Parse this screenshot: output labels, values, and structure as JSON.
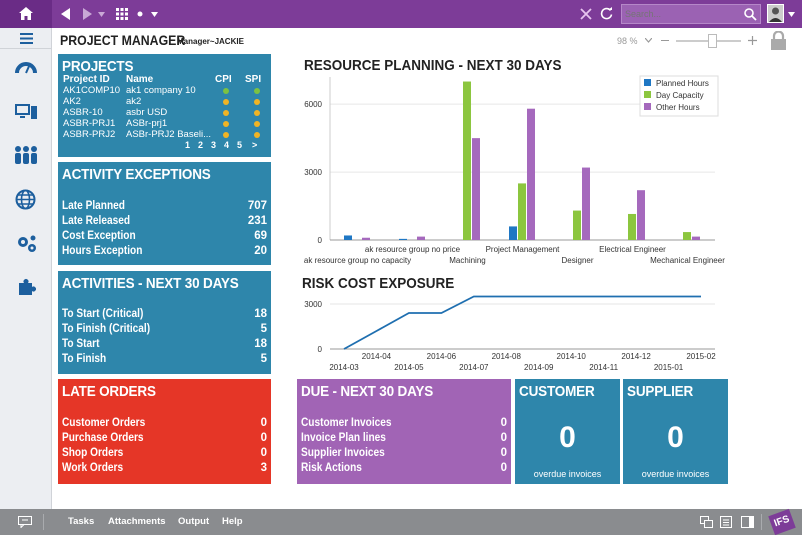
{
  "topbar": {
    "search_placeholder": "Search...",
    "icons": [
      "home-icon",
      "back-icon",
      "forward-icon",
      "dropdown-icon",
      "apps-icon",
      "dot-icon",
      "close-icon",
      "refresh-icon",
      "search-icon",
      "user-avatar"
    ]
  },
  "header": {
    "title": "PROJECT MANAGER",
    "subtitle": "Manager~JACKIE",
    "zoom": "98 %",
    "zoom_fraction": 0.55
  },
  "projects": {
    "title": "PROJECTS",
    "columns": [
      "Project ID",
      "Name",
      "CPI",
      "SPI"
    ],
    "rows": [
      {
        "id": "AK1COMP10",
        "name": "ak1 company 10",
        "cpi": "#7cc242",
        "spi": "#7cc242"
      },
      {
        "id": "AK2",
        "name": "ak2",
        "cpi": "#f0b424",
        "spi": "#f0b424"
      },
      {
        "id": "ASBR-10",
        "name": "asbr USD",
        "cpi": "#f0b424",
        "spi": "#f0b424"
      },
      {
        "id": "ASBR-PRJ1",
        "name": "ASBr-prj1",
        "cpi": "#f0b424",
        "spi": "#f0b424"
      },
      {
        "id": "ASBR-PRJ2",
        "name": "ASBr-PRJ2 Baseli...",
        "cpi": "#f0b424",
        "spi": "#f0b424"
      }
    ],
    "pages": [
      "1",
      "2",
      "3",
      "4",
      "5",
      ">"
    ]
  },
  "activity_exceptions": {
    "title": "ACTIVITY EXCEPTIONS",
    "rows": [
      {
        "label": "Late Planned",
        "value": "707"
      },
      {
        "label": "Late Released",
        "value": "231"
      },
      {
        "label": "Cost Exception",
        "value": "69"
      },
      {
        "label": "Hours Exception",
        "value": "20"
      }
    ]
  },
  "activities": {
    "title": "ACTIVITIES - NEXT 30 DAYS",
    "rows": [
      {
        "label": "To Start (Critical)",
        "value": "18"
      },
      {
        "label": "To Finish (Critical)",
        "value": "5"
      },
      {
        "label": "To Start",
        "value": "18"
      },
      {
        "label": "To Finish",
        "value": "5"
      }
    ]
  },
  "late_orders": {
    "title": "LATE ORDERS",
    "rows": [
      {
        "label": "Customer Orders",
        "value": "0"
      },
      {
        "label": "Purchase Orders",
        "value": "0"
      },
      {
        "label": "Shop Orders",
        "value": "0"
      },
      {
        "label": "Work Orders",
        "value": "3"
      }
    ]
  },
  "due": {
    "title": "DUE - NEXT 30 DAYS",
    "rows": [
      {
        "label": "Customer Invoices",
        "value": "0"
      },
      {
        "label": "Invoice Plan lines",
        "value": "0"
      },
      {
        "label": "Supplier Invoices",
        "value": "0"
      },
      {
        "label": "Risk Actions",
        "value": "0"
      }
    ]
  },
  "customer": {
    "title": "CUSTOMER",
    "value": "0",
    "caption": "overdue invoices"
  },
  "supplier": {
    "title": "SUPPLIER",
    "value": "0",
    "caption": "overdue invoices"
  },
  "chart_data": [
    {
      "type": "bar",
      "title": "RESOURCE PLANNING - NEXT 30 DAYS",
      "categories": [
        "ak resource group no capacity",
        "ak resource group no price",
        "Machining",
        "Project Management",
        "Designer",
        "Electrical Engineer",
        "Mechanical Engineer"
      ],
      "series": [
        {
          "name": "Planned Hours",
          "color": "#1f77c4",
          "values": [
            200,
            50,
            0,
            600,
            0,
            0,
            0
          ]
        },
        {
          "name": "Day Capacity",
          "color": "#8cc63f",
          "values": [
            0,
            0,
            7000,
            2500,
            1300,
            1150,
            350
          ]
        },
        {
          "name": "Other Hours",
          "color": "#a569bd",
          "values": [
            100,
            150,
            4500,
            5800,
            3200,
            2200,
            150
          ]
        }
      ],
      "ylim": [
        0,
        7200
      ],
      "yticks": [
        "0",
        "3000",
        "6000"
      ],
      "xlabels_upper": [
        "ak resource group no price",
        "Project Management",
        "Electrical Engineer"
      ],
      "xlabels_lower": [
        "ak resource group no capacity",
        "Machining",
        "Designer",
        "Mechanical Engineer"
      ],
      "legend_position": "top-right",
      "grid": true
    },
    {
      "type": "line",
      "title": "RISK COST EXPOSURE",
      "x": [
        "2014-03",
        "2014-04",
        "2014-05",
        "2014-06",
        "2014-07",
        "2014-08",
        "2014-09",
        "2014-10",
        "2014-11",
        "2014-12",
        "2015-01",
        "2015-02"
      ],
      "values": [
        0,
        1200,
        2400,
        2400,
        3500,
        3500,
        3500,
        3500,
        3500,
        3500,
        3500,
        3500
      ],
      "color": "#1f6fb0",
      "ylim": [
        0,
        3600
      ],
      "yticks": [
        "0",
        "3000"
      ],
      "xlabels_upper": [
        "2014-04",
        "2014-06",
        "2014-08",
        "2014-10",
        "2014-12",
        "2015-02"
      ],
      "xlabels_lower": [
        "2014-03",
        "2014-05",
        "2014-07",
        "2014-09",
        "2014-11",
        "2015-01"
      ],
      "grid": true
    }
  ],
  "bottombar": {
    "links": [
      "Tasks",
      "Attachments",
      "Output",
      "Help"
    ],
    "brand": "IFS"
  }
}
